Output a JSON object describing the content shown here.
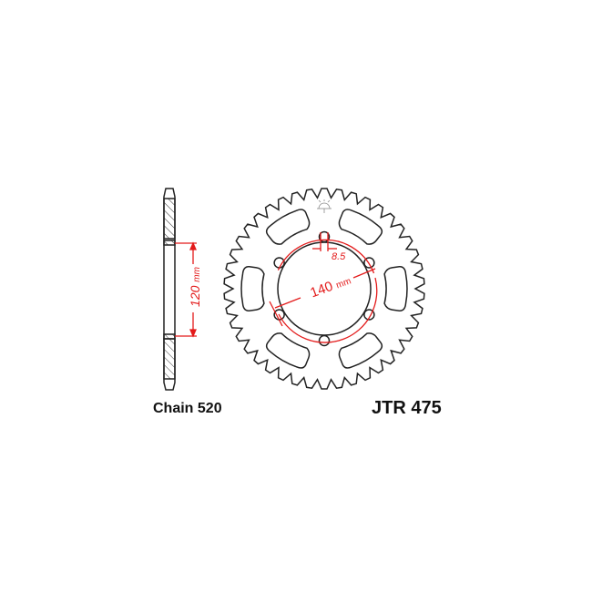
{
  "diagram": {
    "chain_label": "Chain 520",
    "part_number": "JTR 475",
    "dim_hub_value": "120",
    "dim_hub_unit": "mm",
    "dim_pcd_value": "140",
    "dim_pcd_unit": "mm",
    "dim_hole": "8.5",
    "bolt_holes": 6,
    "colors": {
      "outline": "#222222",
      "dimension": "#e31b1b"
    }
  }
}
